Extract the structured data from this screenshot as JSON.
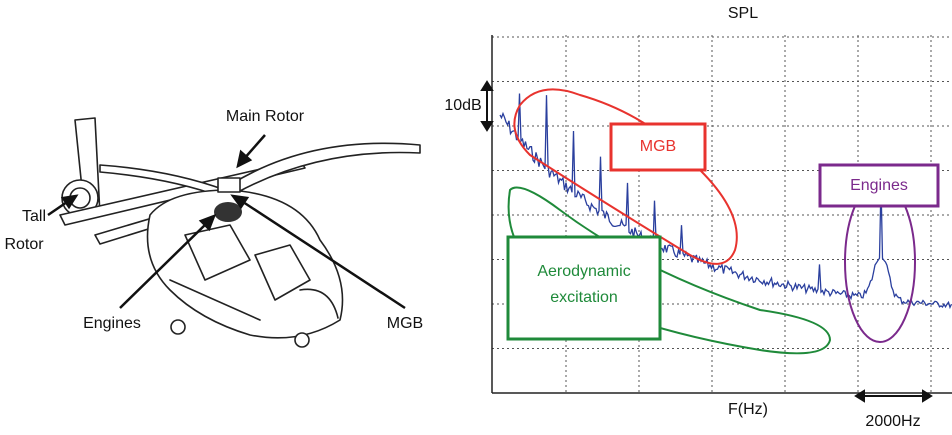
{
  "helicopter": {
    "labels": {
      "main_rotor": "Main Rotor",
      "tail_rotor": [
        "Tall",
        "Rotor"
      ],
      "engines": "Engines",
      "mgb": "MGB"
    }
  },
  "spectrum": {
    "y_label": "SPL",
    "x_label": "F(Hz)",
    "y_scale": "10dB",
    "x_scale": "2000Hz",
    "annotations": {
      "mgb": "MGB",
      "engines": "Engines",
      "aerodynamic": [
        "Aerodynamic",
        "excitation"
      ]
    }
  }
}
